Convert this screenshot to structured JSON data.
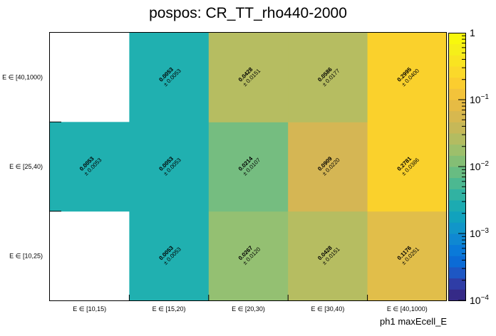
{
  "chart_data": {
    "type": "heatmap",
    "title": "pospos: CR_TT_rho440-2000",
    "xlabel": "ph1 maxEcell_E",
    "ylabel": "",
    "x_categories": [
      "E ∈ [10,15)",
      "E ∈ [15,20)",
      "E ∈ [20,30)",
      "E ∈ [30,40)",
      "E ∈ [40,1000)"
    ],
    "y_categories": [
      "E ∈ [10,25)",
      "E ∈ [25,40)",
      "E ∈ [40,1000)"
    ],
    "z_scale": "log",
    "z_range": [
      0.0001,
      1
    ],
    "z_ticks": [
      {
        "value": 1,
        "label": "1",
        "exp": ""
      },
      {
        "value": 0.1,
        "label": "10",
        "exp": "−1"
      },
      {
        "value": 0.01,
        "label": "10",
        "exp": "−2"
      },
      {
        "value": 0.001,
        "label": "10",
        "exp": "−3"
      },
      {
        "value": 0.0001,
        "label": "10",
        "exp": "−4"
      }
    ],
    "cells": [
      {
        "x": 1,
        "y": 0,
        "value": 0.0053,
        "text": "0.0053",
        "err": "± 0.0053",
        "color": "#20b0b0"
      },
      {
        "x": 2,
        "y": 0,
        "value": 0.0267,
        "text": "0.0267",
        "err": "± 0.0120",
        "color": "#94c072"
      },
      {
        "x": 3,
        "y": 0,
        "value": 0.0428,
        "text": "0.0428",
        "err": "± 0.0151",
        "color": "#b6bd61"
      },
      {
        "x": 4,
        "y": 0,
        "value": 0.1176,
        "text": "0.1176",
        "err": "± 0.0251",
        "color": "#e1be4a"
      },
      {
        "x": 0,
        "y": 1,
        "value": 0.0053,
        "text": "0.0053",
        "err": "± 0.0053",
        "color": "#20b0b0"
      },
      {
        "x": 1,
        "y": 1,
        "value": 0.0053,
        "text": "0.0053",
        "err": "± 0.0053",
        "color": "#20b0b0"
      },
      {
        "x": 2,
        "y": 1,
        "value": 0.0214,
        "text": "0.0214",
        "err": "± 0.0107",
        "color": "#75bd80"
      },
      {
        "x": 3,
        "y": 1,
        "value": 0.0909,
        "text": "0.0909",
        "err": "± 0.0220",
        "color": "#d5b654"
      },
      {
        "x": 4,
        "y": 1,
        "value": 0.2781,
        "text": "0.2781",
        "err": "± 0.0386",
        "color": "#fad12c"
      },
      {
        "x": 1,
        "y": 2,
        "value": 0.0053,
        "text": "0.0053",
        "err": "± 0.0053",
        "color": "#20b0b0"
      },
      {
        "x": 2,
        "y": 2,
        "value": 0.0428,
        "text": "0.0428",
        "err": "± 0.0151",
        "color": "#b6bd61"
      },
      {
        "x": 3,
        "y": 2,
        "value": 0.0586,
        "text": "0.0586",
        "err": "± 0.0177",
        "color": "#b6bd61"
      },
      {
        "x": 4,
        "y": 2,
        "value": 0.2995,
        "text": "0.2995",
        "err": "± 0.0400",
        "color": "#fad12c"
      }
    ],
    "colorbar": [
      "#352a87",
      "#2f3da6",
      "#1d57c4",
      "#0b6bd6",
      "#0a7ad9",
      "#0f88d2",
      "#1196c9",
      "#11a2bd",
      "#1cabb1",
      "#31b2a2",
      "#4cb891",
      "#68bc82",
      "#84be75",
      "#9dbf6b",
      "#b3bc61",
      "#c6b858",
      "#d7b84f",
      "#e6bb44",
      "#f3c33a",
      "#fbcd2f",
      "#fbd92a",
      "#f9e421",
      "#f6ef19",
      "#f8f80d"
    ]
  }
}
